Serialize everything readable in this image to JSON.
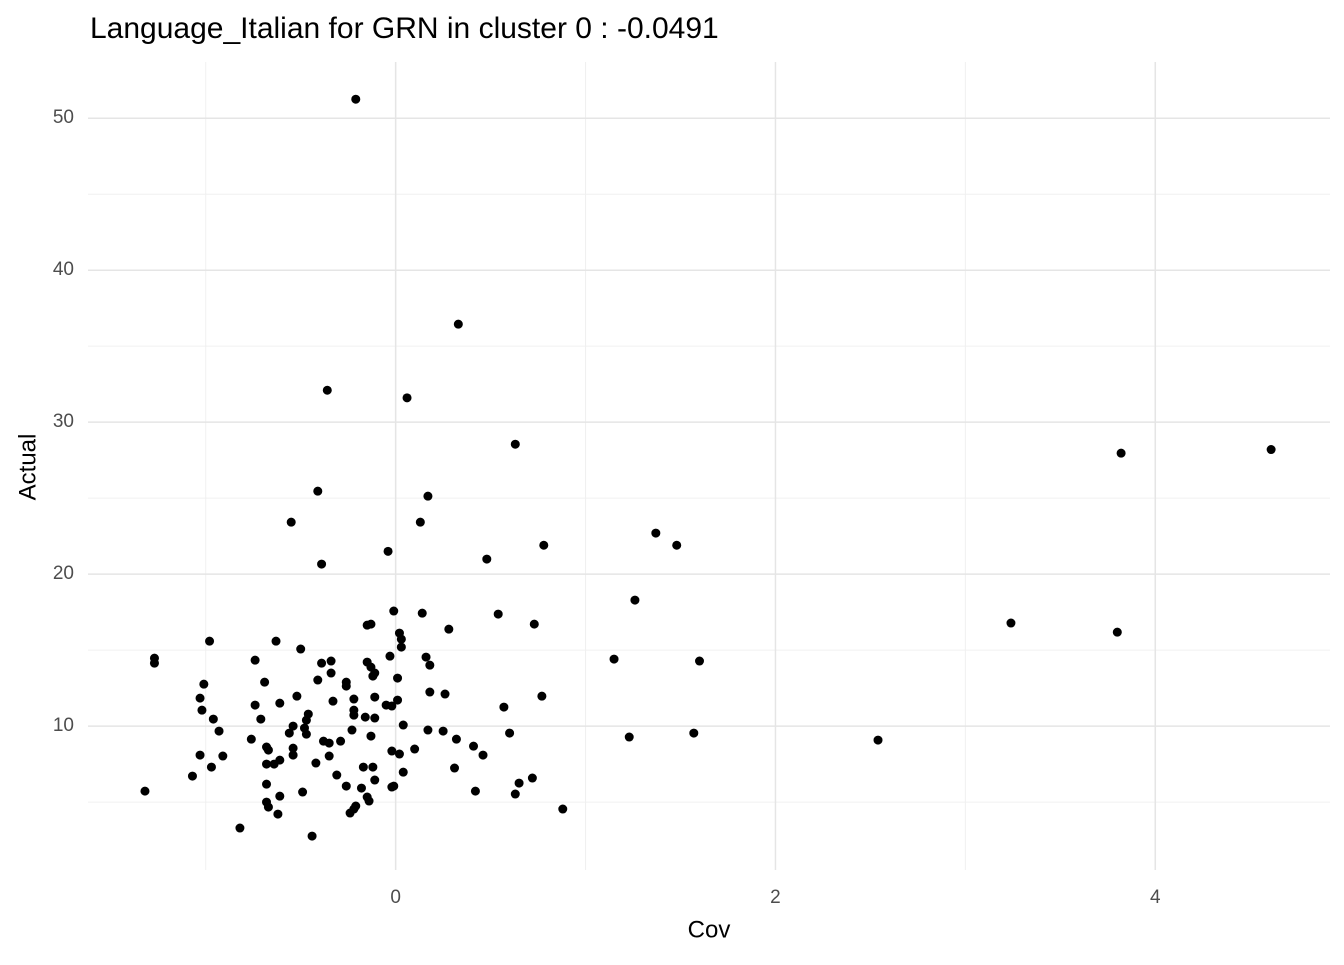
{
  "chart_data": {
    "type": "scatter",
    "title": "Language_Italian for GRN in cluster 0 : -0.0491",
    "x_label": "Cov",
    "y_label": "Actual",
    "color": "#000000",
    "grid": true,
    "xlim": [
      -1.62,
      4.92
    ],
    "ylim": [
      0.53,
      53.7
    ],
    "xticks": [
      0,
      2,
      4
    ],
    "yticks": [
      10,
      20,
      30,
      40,
      50
    ],
    "x_minor_ticks": [
      -1,
      1,
      3
    ],
    "y_minor_ticks": [
      5,
      15,
      25,
      35,
      45
    ],
    "x": [
      -0.21,
      0.33,
      -0.36,
      0.06,
      0.63,
      4.61,
      3.82,
      -0.41,
      0.17,
      -0.55,
      0.13,
      1.37,
      0.78,
      1.48,
      -0.04,
      0.48,
      -0.39,
      1.26,
      -0.01,
      0.54,
      0.14,
      3.24,
      0.73,
      -0.13,
      -0.15,
      0.28,
      0.02,
      3.8,
      -0.98,
      -0.63,
      0.03,
      0.03,
      -0.5,
      -1.27,
      -1.27,
      1.15,
      1.6,
      0.16,
      -0.03,
      0.18,
      -0.74,
      -0.34,
      -0.39,
      -0.15,
      -0.13,
      -0.11,
      -0.34,
      -0.12,
      -0.26,
      -0.41,
      0.01,
      -0.69,
      -1.01,
      -0.26,
      0.18,
      0.26,
      0.77,
      -0.52,
      -0.11,
      -1.03,
      -0.22,
      0.01,
      -0.33,
      -0.61,
      -0.74,
      0.57,
      -0.05,
      -0.02,
      -1.02,
      -0.22,
      -0.46,
      -0.22,
      -0.16,
      -0.11,
      -0.96,
      -0.71,
      -0.47,
      -0.54,
      0.04,
      -0.48,
      -0.93,
      -0.23,
      0.17,
      0.25,
      -0.56,
      -0.47,
      0.6,
      1.57,
      1.23,
      -0.13,
      0.32,
      2.54,
      -0.76,
      -0.38,
      -0.29,
      -0.35,
      0.1,
      -0.68,
      -0.54,
      0.41,
      -0.67,
      -0.02,
      0.02,
      -0.54,
      -1.03,
      -0.91,
      0.46,
      -0.35,
      -0.61,
      -0.42,
      -0.68,
      -0.64,
      -0.97,
      -0.17,
      -0.12,
      0.31,
      0.04,
      -1.07,
      -0.31,
      0.72,
      -0.11,
      0.65,
      -0.68,
      -0.26,
      -0.02,
      -0.18,
      -0.01,
      -1.32,
      -0.49,
      0.42,
      0.63,
      -0.61,
      -0.15,
      -0.14,
      -0.68,
      -0.21,
      -0.67,
      0.88,
      -0.22,
      -0.62,
      -0.24,
      -0.82,
      -0.44
    ],
    "values": [
      51.25,
      36.45,
      32.1,
      31.6,
      28.55,
      28.2,
      27.96,
      25.46,
      25.13,
      23.42,
      23.42,
      22.7,
      21.9,
      21.9,
      21.5,
      20.99,
      20.66,
      18.29,
      17.57,
      17.37,
      17.43,
      16.78,
      16.71,
      16.71,
      16.64,
      16.38,
      16.12,
      16.18,
      15.59,
      15.59,
      15.72,
      15.2,
      15.07,
      14.47,
      14.14,
      14.41,
      14.28,
      14.54,
      14.6,
      14.01,
      14.34,
      14.28,
      14.14,
      14.21,
      13.88,
      13.49,
      13.49,
      13.29,
      12.89,
      13.03,
      13.16,
      12.89,
      12.76,
      12.63,
      12.24,
      12.11,
      11.97,
      11.97,
      11.91,
      11.84,
      11.78,
      11.71,
      11.64,
      11.51,
      11.38,
      11.25,
      11.38,
      11.32,
      11.05,
      11.05,
      10.79,
      10.72,
      10.59,
      10.53,
      10.46,
      10.46,
      10.39,
      10.0,
      10.07,
      9.87,
      9.67,
      9.74,
      9.74,
      9.67,
      9.54,
      9.47,
      9.54,
      9.54,
      9.28,
      9.34,
      9.14,
      9.08,
      9.14,
      9.01,
      9.01,
      8.88,
      8.49,
      8.62,
      8.55,
      8.68,
      8.42,
      8.36,
      8.16,
      8.09,
      8.09,
      8.03,
      8.09,
      8.03,
      7.76,
      7.57,
      7.5,
      7.5,
      7.3,
      7.3,
      7.3,
      7.24,
      6.97,
      6.71,
      6.78,
      6.58,
      6.45,
      6.25,
      6.18,
      6.05,
      5.99,
      5.92,
      6.05,
      5.72,
      5.66,
      5.72,
      5.53,
      5.39,
      5.33,
      5.07,
      5.0,
      4.74,
      4.67,
      4.54,
      4.54,
      4.21,
      4.28,
      3.29,
      2.76
    ]
  }
}
